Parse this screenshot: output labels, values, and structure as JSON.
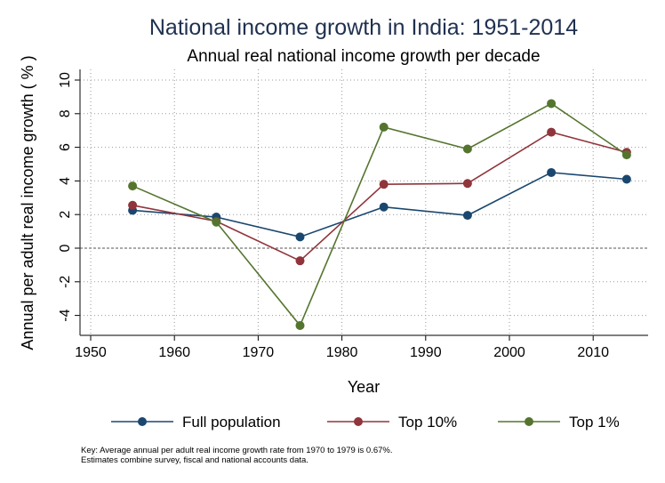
{
  "colors": {
    "title": "#1f3050",
    "full_population": "#1a476f",
    "top10": "#90353b",
    "top1": "#55752f",
    "grid": "#9a9a9a",
    "axis": "#000000"
  },
  "chart_data": {
    "type": "line",
    "title": "National income growth in India: 1951-2014",
    "subtitle": "Annual real national income growth per decade",
    "xlabel": "Year",
    "ylabel": "Annual per adult real income growth ( % )",
    "xlim": [
      1948.5,
      2016.5
    ],
    "ylim": [
      -5.2,
      10.6
    ],
    "xticks": [
      1950,
      1960,
      1970,
      1980,
      1990,
      2000,
      2010
    ],
    "yticks": [
      -4,
      -2,
      0,
      2,
      4,
      6,
      8,
      10
    ],
    "xtick_labels": [
      "1950",
      "1960",
      "1970",
      "1980",
      "1990",
      "2000",
      "2010"
    ],
    "ytick_labels": [
      "-4",
      "-2",
      "0",
      "2",
      "4",
      "6",
      "8",
      "10"
    ],
    "grid": true,
    "legend_position": "bottom",
    "x": [
      1955,
      1965,
      1975,
      1985,
      1995,
      2005,
      2014
    ],
    "series": [
      {
        "name": "Full population",
        "color_key": "full_population",
        "values": [
          2.25,
          1.85,
          0.67,
          2.45,
          1.95,
          4.5,
          4.1
        ]
      },
      {
        "name": "Top 10%",
        "color_key": "top10",
        "values": [
          2.55,
          1.6,
          -0.75,
          3.8,
          3.85,
          6.9,
          5.7
        ]
      },
      {
        "name": "Top 1%",
        "color_key": "top1",
        "values": [
          3.7,
          1.55,
          -4.6,
          7.2,
          5.9,
          8.6,
          5.55
        ]
      }
    ],
    "notes": [
      "Key: Average annual per adult real income growth rate from 1970 to 1979 is 0.67%.",
      "Estimates combine survey, fiscal and national accounts data."
    ]
  }
}
